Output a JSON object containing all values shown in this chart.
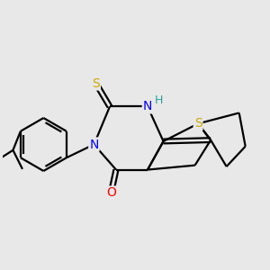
{
  "bg_color": "#e8e8e8",
  "atom_colors": {
    "N": "#0000ff",
    "O": "#ff0000",
    "S_yellow": "#ccaa00",
    "H": "#2aa0a0",
    "C": "#000000"
  },
  "bond_color": "#000000",
  "bond_width": 1.6,
  "dbo": 0.04
}
